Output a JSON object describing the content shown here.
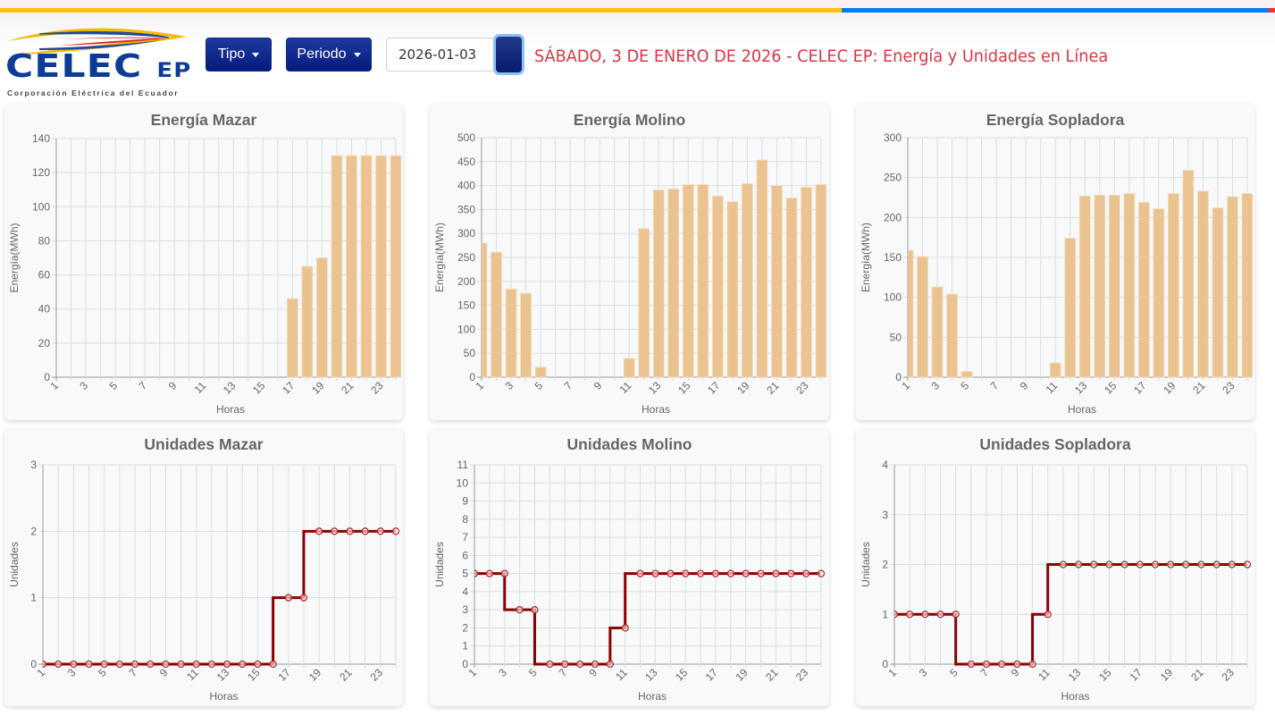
{
  "header": {
    "logo": {
      "brand": "CELEC",
      "suffix": "EP",
      "tagline": "Corporación Eléctrica del Ecuador"
    },
    "tipo_label": "Tipo",
    "periodo_label": "Periodo",
    "date_value": "2026-01-03",
    "title": "SÁBADO, 3 DE ENERO DE 2026 - CELEC EP: Energía y Unidades en Línea"
  },
  "colors": {
    "bar": "#ebc391",
    "line": "#8b0000",
    "top_bar": [
      "#ffc107",
      "#007bff",
      "#dc3545"
    ],
    "title": "#dc3545",
    "button": "#0a2587"
  },
  "chart_data": [
    {
      "id": "energia-mazar",
      "type": "bar",
      "title": "Energía Mazar",
      "xlabel": "Horas",
      "ylabel": "Energía(MWh)",
      "x": [
        1,
        2,
        3,
        4,
        5,
        6,
        7,
        8,
        9,
        10,
        11,
        12,
        13,
        14,
        15,
        16,
        17,
        18,
        19,
        20,
        21,
        22,
        23,
        24
      ],
      "xticks": [
        "1",
        "3",
        "5",
        "7",
        "9",
        "11",
        "13",
        "15",
        "17",
        "19",
        "21",
        "23"
      ],
      "values": [
        0,
        0,
        0,
        0,
        0,
        0,
        0,
        0,
        0,
        0,
        0,
        0,
        0,
        0,
        0,
        0,
        46,
        65,
        70,
        130,
        130,
        130,
        130,
        130
      ],
      "ylim": [
        0,
        140
      ],
      "yticks": [
        0,
        20,
        40,
        60,
        80,
        100,
        120,
        140
      ],
      "grid": true
    },
    {
      "id": "energia-molino",
      "type": "bar",
      "title": "Energía Molino",
      "xlabel": "Horas",
      "ylabel": "Energía(MWh)",
      "x": [
        1,
        2,
        3,
        4,
        5,
        6,
        7,
        8,
        9,
        10,
        11,
        12,
        13,
        14,
        15,
        16,
        17,
        18,
        19,
        20,
        21,
        22,
        23,
        24
      ],
      "xticks": [
        "1",
        "3",
        "5",
        "7",
        "9",
        "11",
        "13",
        "15",
        "17",
        "19",
        "21",
        "23"
      ],
      "values": [
        280,
        261,
        184,
        175,
        21,
        0,
        0,
        0,
        0,
        0,
        39,
        310,
        391,
        393,
        402,
        402,
        378,
        366,
        404,
        453,
        400,
        374,
        396,
        402
      ],
      "ylim": [
        0,
        500
      ],
      "yticks": [
        0,
        50,
        100,
        150,
        200,
        250,
        300,
        350,
        400,
        450,
        500
      ],
      "grid": true
    },
    {
      "id": "energia-sopladora",
      "type": "bar",
      "title": "Energía Sopladora",
      "xlabel": "Horas",
      "ylabel": "Energía(MWh)",
      "x": [
        1,
        2,
        3,
        4,
        5,
        6,
        7,
        8,
        9,
        10,
        11,
        12,
        13,
        14,
        15,
        16,
        17,
        18,
        19,
        20,
        21,
        22,
        23,
        24
      ],
      "xticks": [
        "1",
        "3",
        "5",
        "7",
        "9",
        "11",
        "13",
        "15",
        "17",
        "19",
        "21",
        "23"
      ],
      "values": [
        159,
        151,
        113,
        104,
        7,
        0,
        0,
        0,
        0,
        0,
        18,
        174,
        227,
        228,
        228,
        230,
        219,
        211,
        230,
        259,
        233,
        212,
        226,
        230
      ],
      "ylim": [
        0,
        300
      ],
      "yticks": [
        0,
        50,
        100,
        150,
        200,
        250,
        300
      ],
      "grid": true
    },
    {
      "id": "unidades-mazar",
      "type": "line",
      "stepped": "before",
      "title": "Unidades Mazar",
      "xlabel": "Horas",
      "ylabel": "Unidades",
      "x": [
        1,
        2,
        3,
        4,
        5,
        6,
        7,
        8,
        9,
        10,
        11,
        12,
        13,
        14,
        15,
        16,
        17,
        18,
        19,
        20,
        21,
        22,
        23,
        24
      ],
      "xticks": [
        "1",
        "3",
        "5",
        "7",
        "9",
        "11",
        "13",
        "15",
        "17",
        "19",
        "21",
        "23"
      ],
      "values": [
        0,
        0,
        0,
        0,
        0,
        0,
        0,
        0,
        0,
        0,
        0,
        0,
        0,
        0,
        0,
        0,
        1,
        1,
        2,
        2,
        2,
        2,
        2,
        2
      ],
      "ylim": [
        0,
        3
      ],
      "yticks": [
        0,
        1,
        2,
        3
      ],
      "grid": true
    },
    {
      "id": "unidades-molino",
      "type": "line",
      "stepped": "before",
      "title": "Unidades Molino",
      "xlabel": "Horas",
      "ylabel": "Unidades",
      "x": [
        1,
        2,
        3,
        4,
        5,
        6,
        7,
        8,
        9,
        10,
        11,
        12,
        13,
        14,
        15,
        16,
        17,
        18,
        19,
        20,
        21,
        22,
        23,
        24
      ],
      "xticks": [
        "1",
        "3",
        "5",
        "7",
        "9",
        "11",
        "13",
        "15",
        "17",
        "19",
        "21",
        "23"
      ],
      "values": [
        5,
        5,
        5,
        3,
        3,
        0,
        0,
        0,
        0,
        0,
        2,
        5,
        5,
        5,
        5,
        5,
        5,
        5,
        5,
        5,
        5,
        5,
        5,
        5
      ],
      "ylim": [
        0,
        11
      ],
      "yticks": [
        0,
        1,
        2,
        3,
        4,
        5,
        6,
        7,
        8,
        9,
        10,
        11
      ],
      "grid": true
    },
    {
      "id": "unidades-sopladora",
      "type": "line",
      "stepped": "before",
      "title": "Unidades Sopladora",
      "xlabel": "Horas",
      "ylabel": "Unidades",
      "x": [
        1,
        2,
        3,
        4,
        5,
        6,
        7,
        8,
        9,
        10,
        11,
        12,
        13,
        14,
        15,
        16,
        17,
        18,
        19,
        20,
        21,
        22,
        23,
        24
      ],
      "xticks": [
        "1",
        "3",
        "5",
        "7",
        "9",
        "11",
        "13",
        "15",
        "17",
        "19",
        "21",
        "23"
      ],
      "values": [
        1,
        1,
        1,
        1,
        1,
        0,
        0,
        0,
        0,
        0,
        1,
        2,
        2,
        2,
        2,
        2,
        2,
        2,
        2,
        2,
        2,
        2,
        2,
        2
      ],
      "ylim": [
        0,
        4
      ],
      "yticks": [
        0,
        1,
        2,
        3,
        4
      ],
      "grid": true
    }
  ]
}
